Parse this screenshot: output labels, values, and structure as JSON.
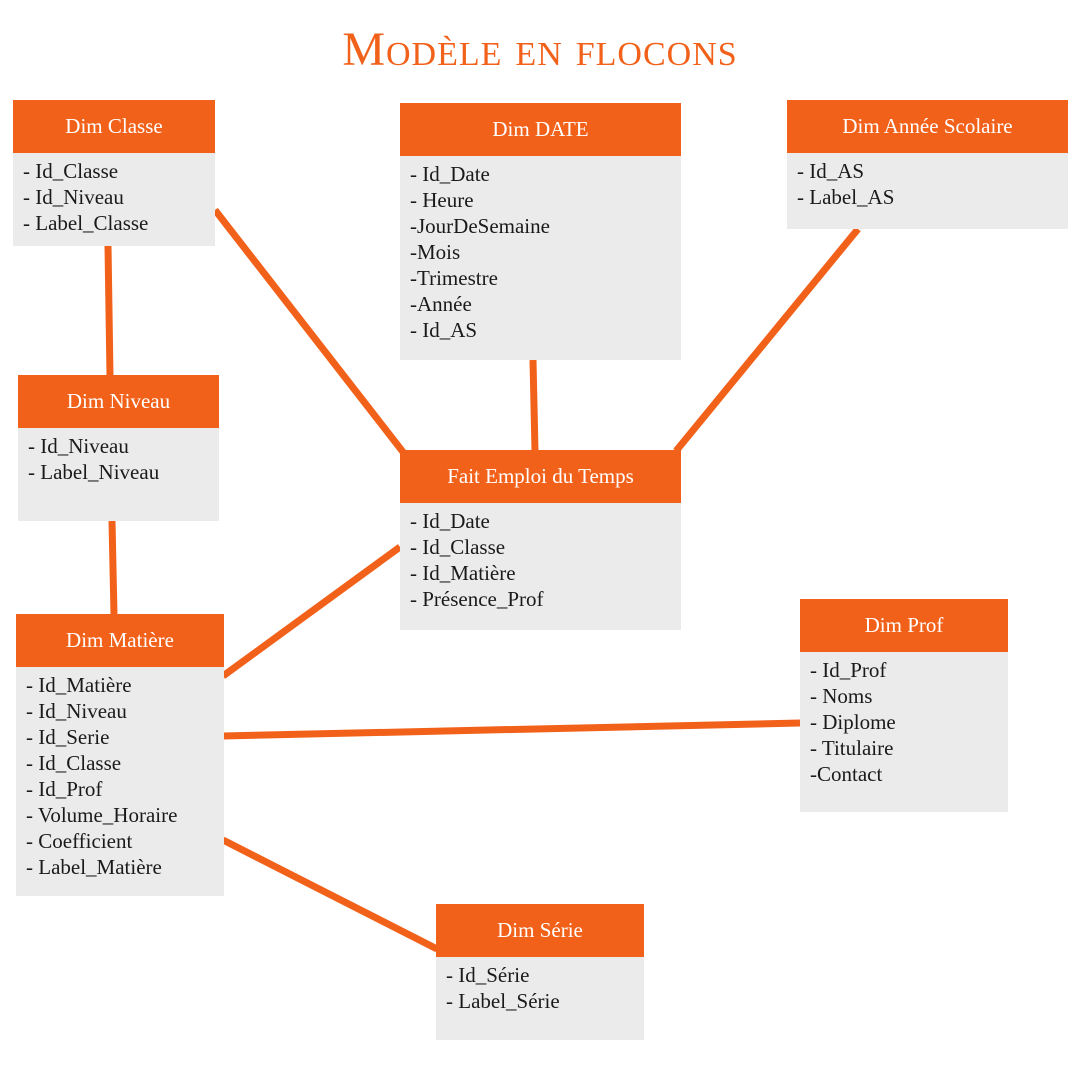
{
  "title": "Modèle en flocons",
  "colors": {
    "accent": "#f2611a",
    "box_bg": "#ebebeb",
    "header_text": "#ffffff"
  },
  "tables": {
    "dim_classe": {
      "name": "Dim Classe",
      "fields": [
        "- Id_Classe",
        "- Id_Niveau",
        "- Label_Classe"
      ]
    },
    "dim_date": {
      "name": "Dim DATE",
      "fields": [
        "- Id_Date",
        "- Heure",
        "-JourDeSemaine",
        "-Mois",
        "-Trimestre",
        "-Année",
        "- Id_AS"
      ]
    },
    "dim_annee_scolaire": {
      "name": "Dim Année Scolaire",
      "fields": [
        "- Id_AS",
        "- Label_AS"
      ]
    },
    "dim_niveau": {
      "name": "Dim Niveau",
      "fields": [
        "- Id_Niveau",
        "- Label_Niveau"
      ]
    },
    "fait_emploi_du_temps": {
      "name": "Fait Emploi du Temps",
      "fields": [
        "- Id_Date",
        "- Id_Classe",
        "- Id_Matière",
        "- Présence_Prof"
      ]
    },
    "dim_matiere": {
      "name": "Dim Matière",
      "fields": [
        "- Id_Matière",
        "- Id_Niveau",
        "- Id_Serie",
        "- Id_Classe",
        "- Id_Prof",
        "- Volume_Horaire",
        "- Coefficient",
        "- Label_Matière"
      ]
    },
    "dim_prof": {
      "name": "Dim Prof",
      "fields": [
        "- Id_Prof",
        "- Noms",
        "- Diplome",
        "- Titulaire",
        "-Contact"
      ]
    },
    "dim_serie": {
      "name": "Dim Série",
      "fields": [
        "- Id_Série",
        "- Label_Série"
      ]
    }
  },
  "links": [
    [
      "dim_classe",
      "fait_emploi_du_temps"
    ],
    [
      "dim_classe",
      "dim_niveau"
    ],
    [
      "dim_niveau",
      "dim_matiere"
    ],
    [
      "dim_date",
      "fait_emploi_du_temps"
    ],
    [
      "dim_annee_scolaire",
      "fait_emploi_du_temps"
    ],
    [
      "fait_emploi_du_temps",
      "dim_matiere"
    ],
    [
      "dim_matiere",
      "dim_prof"
    ],
    [
      "dim_matiere",
      "dim_serie"
    ]
  ]
}
